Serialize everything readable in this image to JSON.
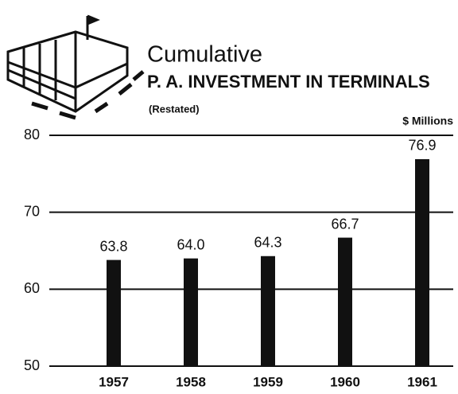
{
  "chart_data": {
    "type": "bar",
    "title": "Cumulative",
    "subtitle": "P. A. INVESTMENT IN TERMINALS",
    "note": "(Restated)",
    "y_axis_label": "$ Millions",
    "categories": [
      "1957",
      "1958",
      "1959",
      "1960",
      "1961"
    ],
    "values": [
      63.8,
      64.0,
      64.3,
      66.7,
      76.9
    ],
    "value_labels": [
      "63.8",
      "64.0",
      "64.3",
      "66.7",
      "76.9"
    ],
    "color": "#111111",
    "ylim": [
      50,
      80
    ],
    "yticks": [
      50,
      60,
      70,
      80
    ],
    "grid": true
  }
}
